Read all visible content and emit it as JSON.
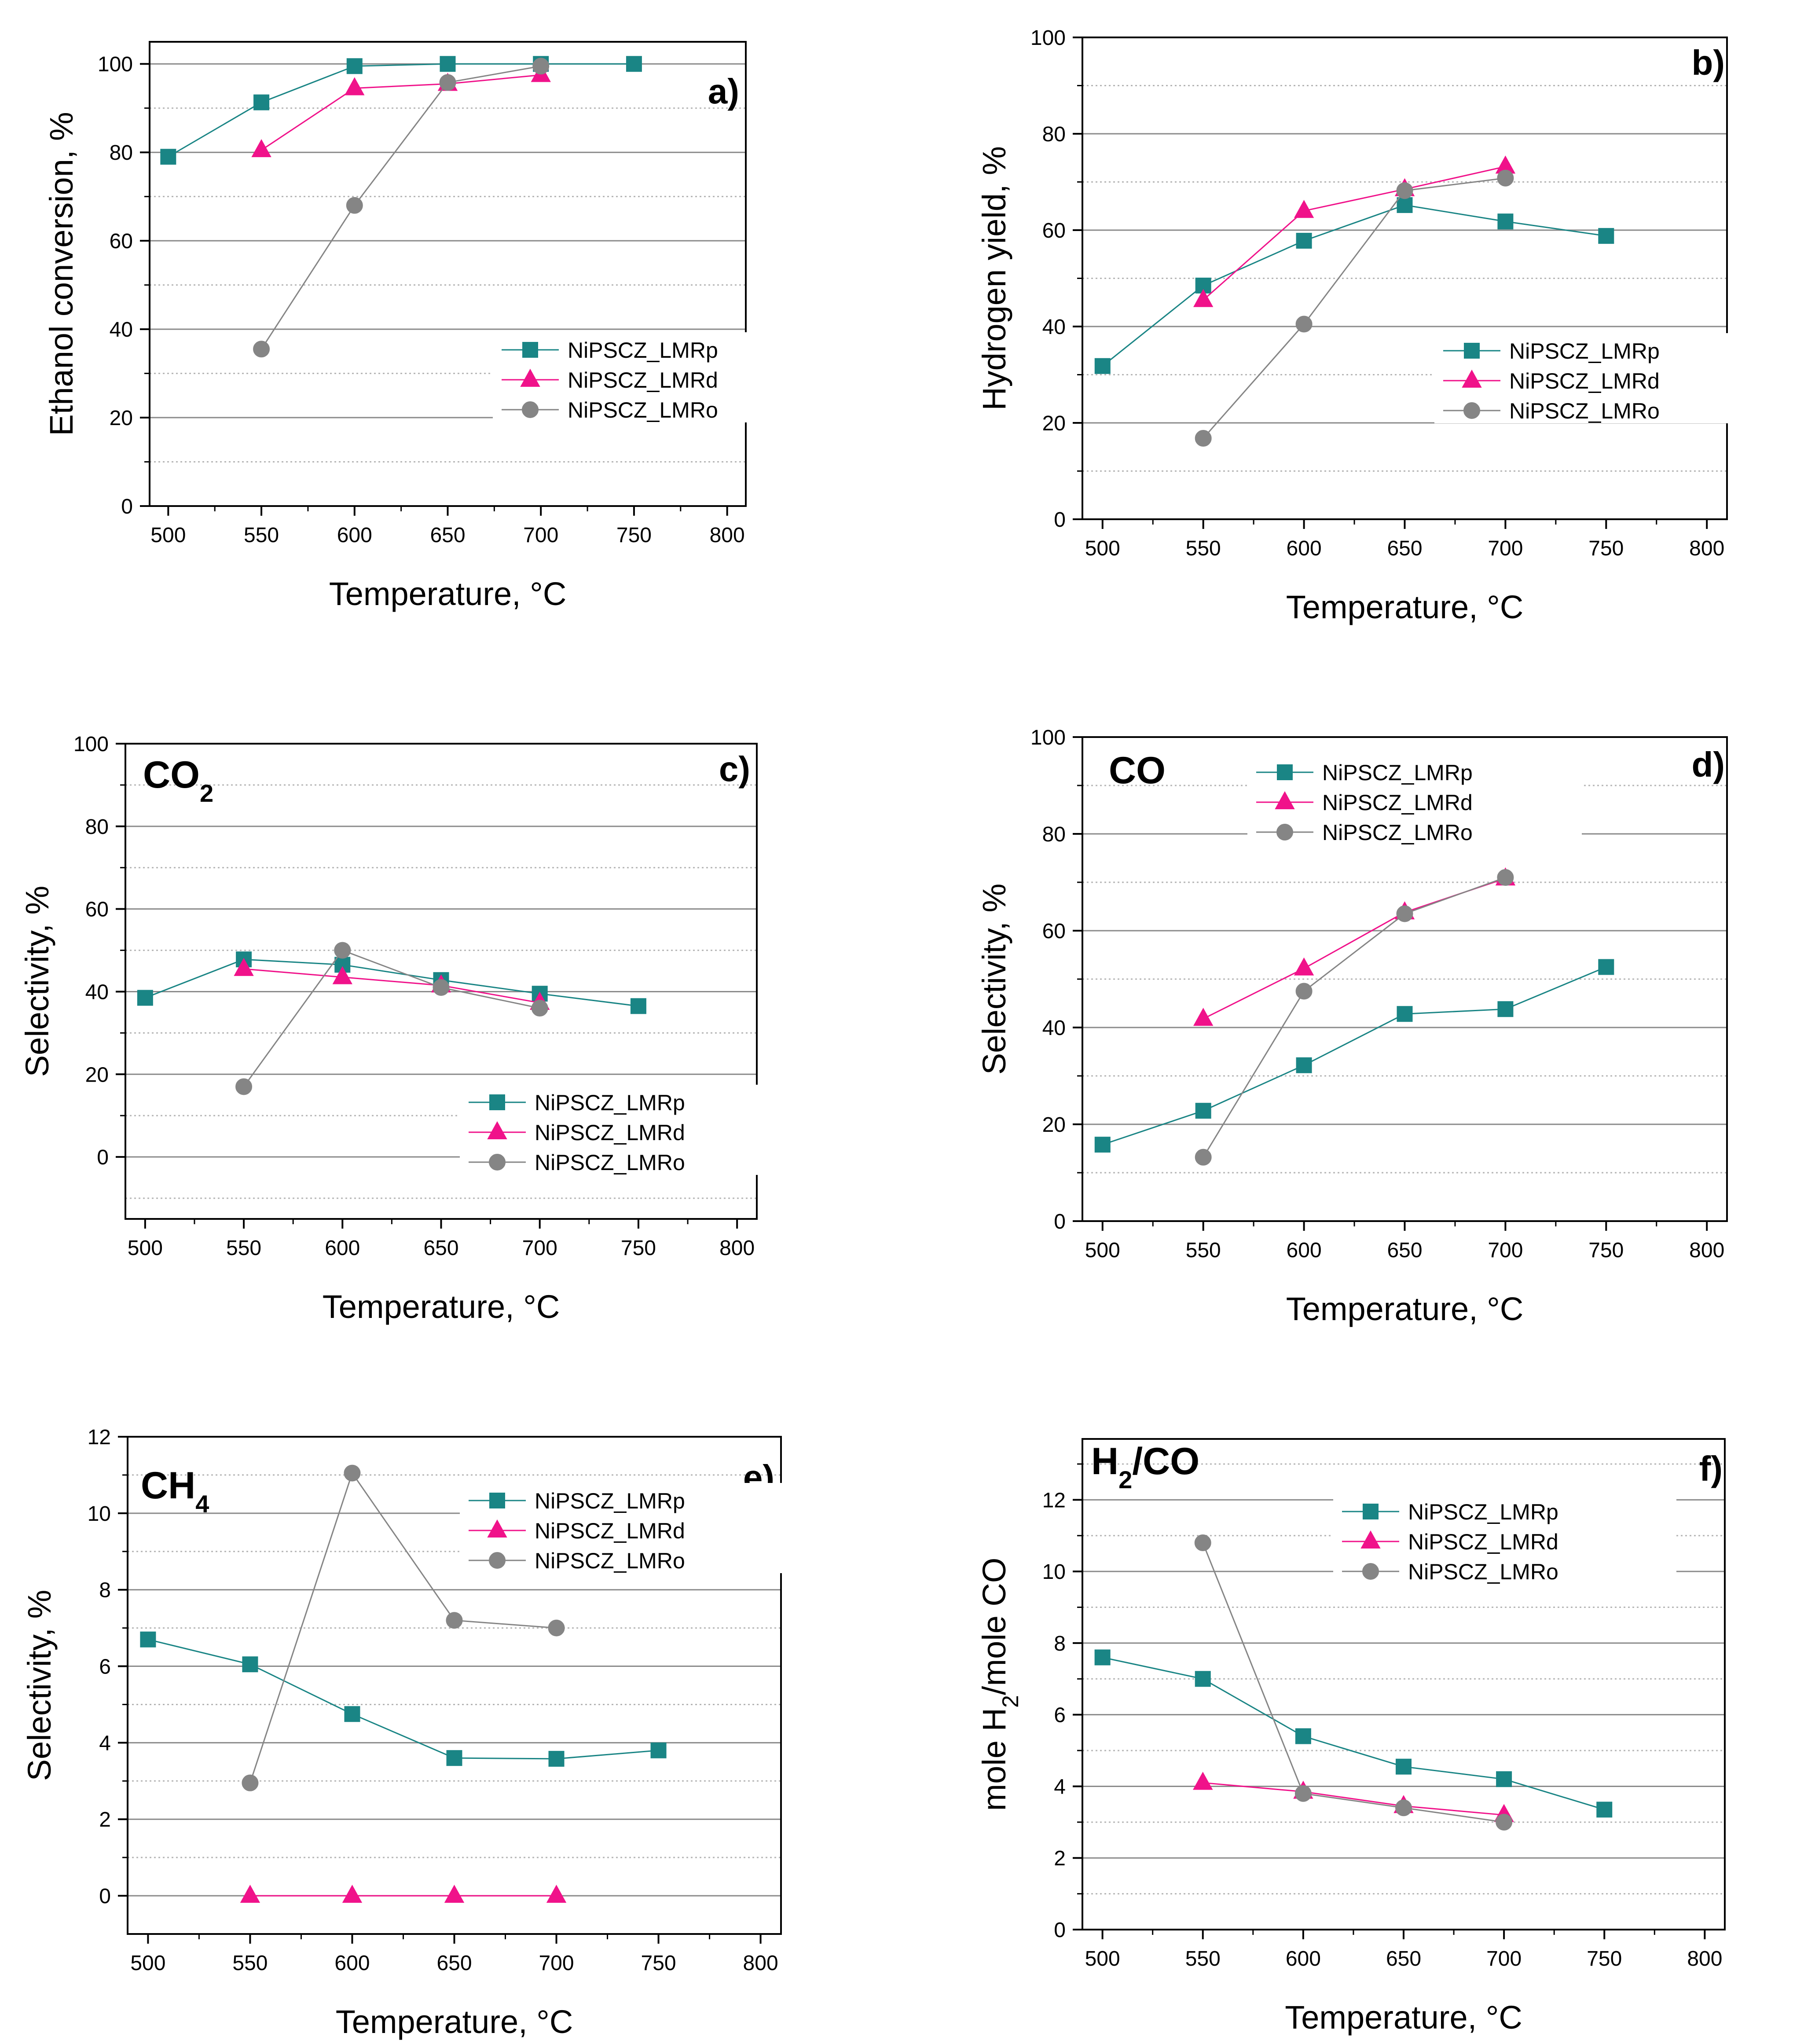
{
  "chart_data": [
    {
      "type": "line",
      "panel_label": "a)",
      "title": "",
      "xlabel": "Temperature, °C",
      "ylabel": "Ethanol conversion, %",
      "xlim": [
        490,
        810
      ],
      "ylim": [
        0,
        105
      ],
      "xticks": [
        "500",
        "550",
        "600",
        "650",
        "700",
        "750",
        "800"
      ],
      "yticks": [
        "0",
        "20",
        "40",
        "60",
        "80",
        "100"
      ],
      "legend_position": "lower-right",
      "series": [
        {
          "name": "NiPSCZ_LMRp",
          "marker": "square",
          "x": [
            500,
            550,
            600,
            650,
            700,
            750
          ],
          "y": [
            79,
            91.3,
            99.5,
            100,
            100,
            100
          ]
        },
        {
          "name": "NiPSCZ_LMRd",
          "marker": "triangle",
          "x": [
            550,
            600,
            650,
            700
          ],
          "y": [
            80.5,
            94.5,
            95.5,
            97.5
          ]
        },
        {
          "name": "NiPSCZ_LMRo",
          "marker": "circle",
          "x": [
            550,
            600,
            650,
            700
          ],
          "y": [
            35.5,
            68,
            95.8,
            99.5
          ]
        }
      ]
    },
    {
      "type": "line",
      "panel_label": "b)",
      "title": "",
      "xlabel": "Temperature, °C",
      "ylabel": "Hydrogen yield, %",
      "xlim": [
        490,
        810
      ],
      "ylim": [
        0,
        100
      ],
      "xticks": [
        "500",
        "550",
        "600",
        "650",
        "700",
        "750",
        "800"
      ],
      "yticks": [
        "0",
        "20",
        "40",
        "60",
        "80",
        "100"
      ],
      "legend_position": "lower-right",
      "series": [
        {
          "name": "NiPSCZ_LMRp",
          "marker": "square",
          "x": [
            500,
            550,
            600,
            650,
            700,
            750
          ],
          "y": [
            31.8,
            48.5,
            57.8,
            65.2,
            61.8,
            58.8
          ]
        },
        {
          "name": "NiPSCZ_LMRd",
          "marker": "triangle",
          "x": [
            550,
            600,
            650,
            700
          ],
          "y": [
            45.5,
            64,
            68.5,
            73.2
          ]
        },
        {
          "name": "NiPSCZ_LMRo",
          "marker": "circle",
          "x": [
            550,
            600,
            650,
            700
          ],
          "y": [
            16.8,
            40.5,
            68.2,
            70.8
          ]
        }
      ]
    },
    {
      "type": "line",
      "panel_label": "c)",
      "title": "CO",
      "title_subscript": "2",
      "xlabel": "Temperature, °C",
      "ylabel": "Selectivity, %",
      "xlim": [
        490,
        810
      ],
      "ylim": [
        -15,
        100
      ],
      "xticks": [
        "500",
        "550",
        "600",
        "650",
        "700",
        "750",
        "800"
      ],
      "yticks": [
        "0",
        "20",
        "40",
        "60",
        "80",
        "100"
      ],
      "legend_position": "lower-right",
      "series": [
        {
          "name": "NiPSCZ_LMRp",
          "marker": "square",
          "x": [
            500,
            550,
            600,
            650,
            700,
            750
          ],
          "y": [
            38.5,
            47.8,
            46.5,
            42.8,
            39.5,
            36.5
          ]
        },
        {
          "name": "NiPSCZ_LMRd",
          "marker": "triangle",
          "x": [
            550,
            600,
            650,
            700
          ],
          "y": [
            45.5,
            43.5,
            41.5,
            37.3
          ]
        },
        {
          "name": "NiPSCZ_LMRo",
          "marker": "circle",
          "x": [
            550,
            600,
            650,
            700
          ],
          "y": [
            17,
            50,
            41,
            36
          ]
        }
      ]
    },
    {
      "type": "line",
      "panel_label": "d)",
      "title": "CO",
      "title_subscript": "",
      "xlabel": "Temperature, °C",
      "ylabel": "Selectivity, %",
      "xlim": [
        490,
        810
      ],
      "ylim": [
        0,
        100
      ],
      "xticks": [
        "500",
        "550",
        "600",
        "650",
        "700",
        "750",
        "800"
      ],
      "yticks": [
        "0",
        "20",
        "40",
        "60",
        "80",
        "100"
      ],
      "legend_position": "top-center",
      "series": [
        {
          "name": "NiPSCZ_LMRp",
          "marker": "square",
          "x": [
            500,
            550,
            600,
            650,
            700,
            750
          ],
          "y": [
            15.8,
            22.8,
            32.2,
            42.8,
            43.8,
            52.5
          ]
        },
        {
          "name": "NiPSCZ_LMRd",
          "marker": "triangle",
          "x": [
            550,
            600,
            650,
            700
          ],
          "y": [
            41.8,
            52.2,
            63.8,
            70.8
          ]
        },
        {
          "name": "NiPSCZ_LMRo",
          "marker": "circle",
          "x": [
            550,
            600,
            650,
            700
          ],
          "y": [
            13.2,
            47.5,
            63.5,
            71
          ]
        }
      ]
    },
    {
      "type": "line",
      "panel_label": "e)",
      "title": "CH",
      "title_subscript": "4",
      "xlabel": "Temperature, °C",
      "ylabel": "Selectivity, %",
      "xlim": [
        490,
        810
      ],
      "ylim": [
        -1,
        12
      ],
      "xticks": [
        "500",
        "550",
        "600",
        "650",
        "700",
        "750",
        "800"
      ],
      "yticks": [
        "0",
        "2",
        "4",
        "6",
        "8",
        "10",
        "12"
      ],
      "legend_position": "top-right",
      "series": [
        {
          "name": "NiPSCZ_LMRp",
          "marker": "square",
          "x": [
            500,
            550,
            600,
            650,
            700,
            750
          ],
          "y": [
            6.7,
            6.05,
            4.75,
            3.6,
            3.58,
            3.8
          ]
        },
        {
          "name": "NiPSCZ_LMRd",
          "marker": "triangle",
          "x": [
            550,
            600,
            650,
            700
          ],
          "y": [
            0,
            0,
            0,
            0
          ]
        },
        {
          "name": "NiPSCZ_LMRo",
          "marker": "circle",
          "x": [
            550,
            600,
            650,
            700
          ],
          "y": [
            2.95,
            11.05,
            7.2,
            7
          ]
        }
      ]
    },
    {
      "type": "line",
      "panel_label": "f)",
      "title": "H",
      "title_subscript": "2",
      "title_suffix": "/CO",
      "xlabel": "Temperature, °C",
      "ylabel_parts": [
        "mole H",
        "2",
        "/mole CO"
      ],
      "xlim": [
        490,
        810
      ],
      "ylim": [
        0,
        13.7
      ],
      "xticks": [
        "500",
        "550",
        "600",
        "650",
        "700",
        "750",
        "800"
      ],
      "yticks": [
        "0",
        "2",
        "4",
        "6",
        "8",
        "10",
        "12"
      ],
      "legend_position": "top-center",
      "series": [
        {
          "name": "NiPSCZ_LMRp",
          "marker": "square",
          "x": [
            500,
            550,
            600,
            650,
            700,
            750
          ],
          "y": [
            7.6,
            7,
            5.4,
            4.55,
            4.2,
            3.35
          ]
        },
        {
          "name": "NiPSCZ_LMRd",
          "marker": "triangle",
          "x": [
            550,
            600,
            650,
            700
          ],
          "y": [
            4.1,
            3.85,
            3.45,
            3.2
          ]
        },
        {
          "name": "NiPSCZ_LMRo",
          "marker": "circle",
          "x": [
            550,
            600,
            650,
            700
          ],
          "y": [
            10.8,
            3.8,
            3.4,
            3.0
          ]
        }
      ]
    }
  ],
  "colors": {
    "NiPSCZ_LMRp": "#1a8585",
    "NiPSCZ_LMRd": "#f0128a",
    "NiPSCZ_LMRo": "#858585",
    "grid_major": "#8a8a8a",
    "grid_minor": "#b5b5b5",
    "axis": "#000000"
  }
}
